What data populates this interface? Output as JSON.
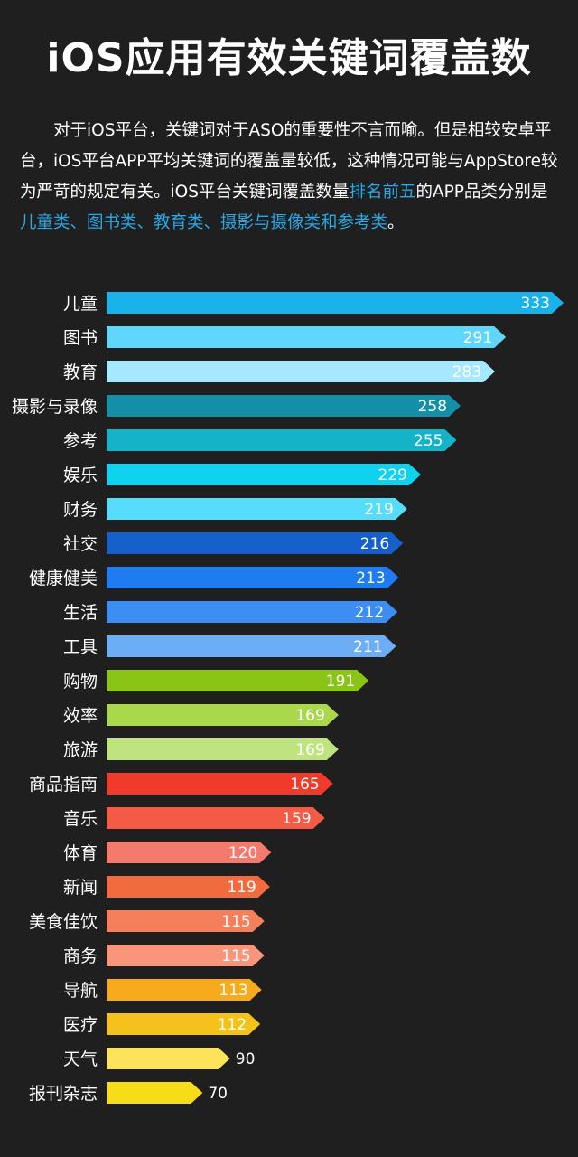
{
  "title": "iOS应用有效关键词覆盖数",
  "intro": {
    "part1": "　　对于iOS平台，关键词对于ASO的重要性不言而喻。但是相较安卓平台，iOS平台APP平均关键词的覆盖量较低，这种情况可能与AppStore较为严苛的规定有关。iOS平台关键词覆盖数量",
    "highlight1": "排名前五",
    "part2": "的APP品类分别是",
    "highlight2": "儿童类、图书类、教育类、摄影与摄像类和参考类",
    "part3": "。"
  },
  "colors": {
    "highlight": "#2aa8e4",
    "background": "#1f1f1f"
  },
  "chart_data": {
    "type": "bar",
    "orientation": "horizontal",
    "categories": [
      "儿童",
      "图书",
      "教育",
      "摄影与录像",
      "参考",
      "娱乐",
      "财务",
      "社交",
      "健康健美",
      "生活",
      "工具",
      "购物",
      "效率",
      "旅游",
      "商品指南",
      "音乐",
      "体育",
      "新闻",
      "美食佳饮",
      "商务",
      "导航",
      "医疗",
      "天气",
      "报刊杂志"
    ],
    "values": [
      333,
      291,
      283,
      258,
      255,
      229,
      219,
      216,
      213,
      212,
      211,
      191,
      169,
      169,
      165,
      159,
      120,
      119,
      115,
      115,
      113,
      112,
      90,
      70
    ],
    "colors": [
      "#19b2ea",
      "#5fd6fb",
      "#a6e8fd",
      "#138fa8",
      "#14b3c8",
      "#0fd2ef",
      "#55ddfb",
      "#1660cc",
      "#1f7bf0",
      "#3c8ef3",
      "#6baef6",
      "#89c416",
      "#a9d84a",
      "#bfe47d",
      "#f13a2b",
      "#f45a46",
      "#f57a6e",
      "#f26b3f",
      "#f57f5a",
      "#f8957a",
      "#f7ab1c",
      "#f4c21a",
      "#fbe35a",
      "#f7dc18"
    ]
  }
}
